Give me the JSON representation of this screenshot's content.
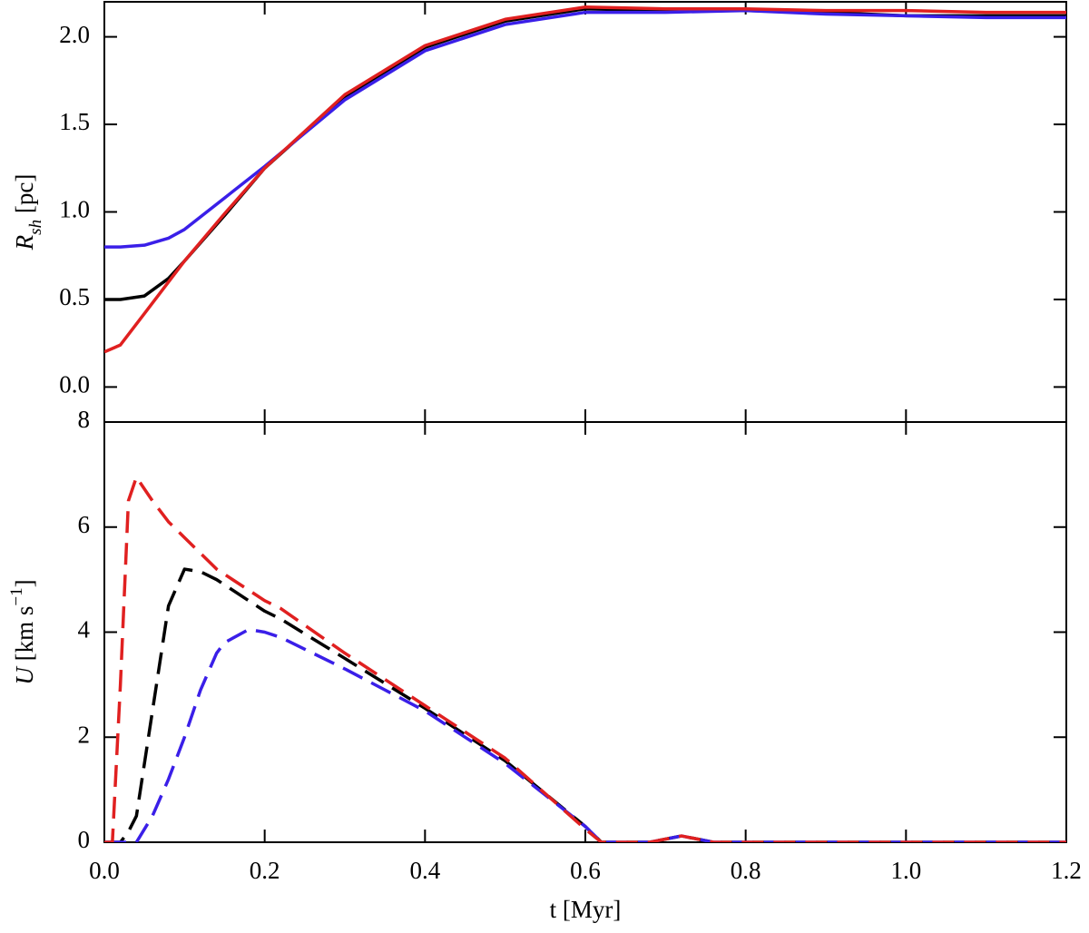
{
  "chart_data": [
    {
      "type": "line",
      "ylabel": {
        "symbol": "R",
        "sub": "sh",
        "unit": " [pc]"
      },
      "xlim": [
        0,
        1.2
      ],
      "ylim": [
        -0.2,
        2.2
      ],
      "yticks": [
        {
          "value": 0,
          "label": "0.0"
        },
        0.5,
        {
          "value": 1,
          "label": "1.0"
        },
        1.5,
        {
          "value": 2,
          "label": "2.0"
        }
      ],
      "linestyle": "solid",
      "x": [
        0,
        0.02,
        0.05,
        0.08,
        0.1,
        0.15,
        0.2,
        0.3,
        0.4,
        0.5,
        0.6,
        0.7,
        0.8,
        0.9,
        1.0,
        1.1,
        1.2
      ],
      "series": [
        {
          "color": "#000000",
          "values": [
            0.5,
            0.5,
            0.52,
            0.62,
            0.72,
            0.98,
            1.25,
            1.66,
            1.94,
            2.09,
            2.16,
            2.15,
            2.15,
            2.14,
            2.12,
            2.12,
            2.12
          ]
        },
        {
          "color": "#3a1fe8",
          "values": [
            0.8,
            0.8,
            0.81,
            0.85,
            0.9,
            1.08,
            1.26,
            1.64,
            1.92,
            2.07,
            2.14,
            2.14,
            2.15,
            2.13,
            2.12,
            2.11,
            2.11
          ]
        },
        {
          "color": "#e02020",
          "values": [
            0.2,
            0.24,
            0.42,
            0.6,
            0.72,
            0.99,
            1.25,
            1.67,
            1.95,
            2.1,
            2.17,
            2.16,
            2.16,
            2.15,
            2.15,
            2.14,
            2.14
          ]
        }
      ]
    },
    {
      "type": "line",
      "ylabel": {
        "symbol": "U",
        "unit": " [km s",
        "sup": "−1",
        "close": "]"
      },
      "xlabel": "t [Myr]",
      "xlim": [
        0,
        1.2
      ],
      "xticks": [
        {
          "value": 0,
          "label": "0.0"
        },
        0.2,
        0.4,
        0.6,
        0.8,
        {
          "value": 1,
          "label": "1.0"
        },
        1.2
      ],
      "ylim": [
        0,
        8
      ],
      "yticks": [
        0,
        2,
        4,
        6,
        8
      ],
      "linestyle": "dashed",
      "x": [
        0,
        0.01,
        0.02,
        0.03,
        0.04,
        0.06,
        0.08,
        0.1,
        0.12,
        0.14,
        0.15,
        0.18,
        0.2,
        0.22,
        0.3,
        0.4,
        0.5,
        0.6,
        0.62,
        0.68,
        0.72,
        0.76,
        0.8,
        1.0,
        1.2
      ],
      "series": [
        {
          "color": "#000000",
          "values": [
            0,
            0,
            0,
            0.2,
            0.5,
            2.5,
            4.5,
            5.2,
            5.15,
            5.0,
            4.9,
            4.6,
            4.4,
            4.25,
            3.5,
            2.55,
            1.55,
            0.3,
            0,
            0,
            0.12,
            0,
            0,
            0,
            0
          ]
        },
        {
          "color": "#3a1fe8",
          "values": [
            0,
            0,
            0,
            0,
            0,
            0.5,
            1.2,
            2.0,
            2.9,
            3.6,
            3.8,
            4.05,
            4.0,
            3.9,
            3.3,
            2.5,
            1.5,
            0.3,
            0,
            0,
            0.12,
            0,
            0,
            0,
            0
          ]
        },
        {
          "color": "#e02020",
          "values": [
            0,
            0,
            3,
            6.5,
            6.95,
            6.5,
            6.1,
            5.8,
            5.5,
            5.2,
            5.1,
            4.8,
            4.6,
            4.45,
            3.6,
            2.6,
            1.6,
            0.25,
            0,
            0,
            0.12,
            0,
            0,
            0,
            0
          ]
        }
      ]
    }
  ]
}
